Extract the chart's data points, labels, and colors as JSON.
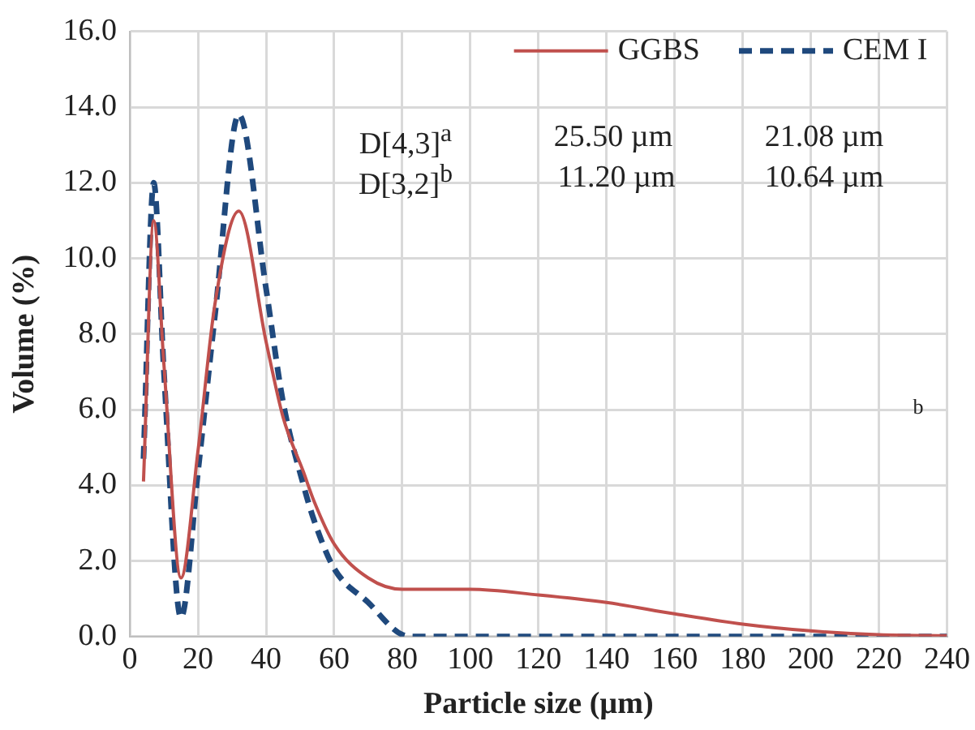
{
  "chart_data": {
    "type": "line",
    "xlabel": "Particle size (µm)",
    "ylabel": "Volume (%)",
    "xlim": [
      0,
      240
    ],
    "xticks": [
      0,
      20,
      40,
      60,
      80,
      100,
      120,
      140,
      160,
      180,
      200,
      220,
      240
    ],
    "ylim": [
      0,
      16
    ],
    "yticks": [
      {
        "value": 0,
        "label": "0.0"
      },
      {
        "value": 2,
        "label": "2.0"
      },
      {
        "value": 4,
        "label": "4.0"
      },
      {
        "value": 6,
        "label": "6.0"
      },
      {
        "value": 8,
        "label": "8.0"
      },
      {
        "value": 10,
        "label": "10.0"
      },
      {
        "value": 12,
        "label": "12.0"
      },
      {
        "value": 14,
        "label": "14.0"
      },
      {
        "value": 16,
        "label": "16.0"
      }
    ],
    "grid": true,
    "legend": "top right",
    "marker": "none",
    "series": [
      {
        "name": "GGBS",
        "color": "#c0504d",
        "line_style": "solid",
        "x": [
          4,
          7,
          10,
          15,
          20,
          25,
          32,
          40,
          45,
          51,
          54,
          60,
          70,
          80,
          100,
          120,
          140,
          160,
          180,
          200,
          220,
          240
        ],
        "values": [
          4.1,
          11.0,
          7.2,
          1.55,
          4.9,
          8.8,
          11.25,
          7.8,
          5.8,
          4.35,
          3.6,
          2.45,
          1.55,
          1.25,
          1.25,
          1.1,
          0.9,
          0.6,
          0.33,
          0.15,
          0.05,
          0.02
        ]
      },
      {
        "name": "CEM I",
        "color": "#1f497d",
        "line_style": "dashed",
        "x": [
          4,
          7,
          10,
          15,
          20,
          25,
          32,
          40,
          45,
          51,
          54,
          60,
          70,
          80,
          84,
          100,
          120,
          140,
          160,
          180,
          200,
          220,
          240
        ],
        "values": [
          4.7,
          12.0,
          7.0,
          0.5,
          4.35,
          8.5,
          13.8,
          9.2,
          6.2,
          4.0,
          3.1,
          1.8,
          0.9,
          0.05,
          0,
          0,
          0,
          0,
          0,
          0,
          0,
          0,
          0
        ]
      }
    ],
    "annotations": [
      "D[4,3]$^{a}$",
      "25.50 µm",
      "21.08 µm",
      "D[3,2]$^{b}$",
      "11.20 µm",
      "10.64 µm",
      "b"
    ]
  }
}
